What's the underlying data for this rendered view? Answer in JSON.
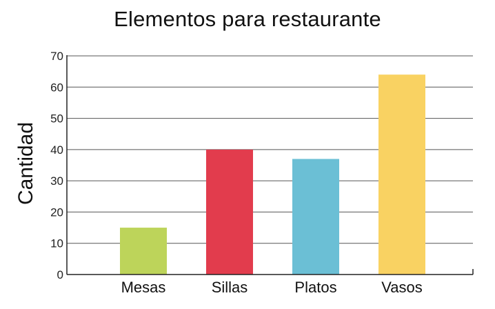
{
  "chart_data": {
    "type": "bar",
    "title": "Elementos para restaurante",
    "xlabel": "",
    "ylabel": "Cantidad",
    "categories": [
      "Mesas",
      "Sillas",
      "Platos",
      "Vasos"
    ],
    "values": [
      15,
      40,
      37,
      64
    ],
    "colors": [
      "#bdd45a",
      "#e23c4d",
      "#6bbfd5",
      "#f9d262"
    ],
    "ylim": [
      0,
      70
    ],
    "yticks": [
      "0",
      "10",
      "20",
      "30",
      "40",
      "50",
      "60",
      "70"
    ],
    "grid": true,
    "legend": "none"
  }
}
